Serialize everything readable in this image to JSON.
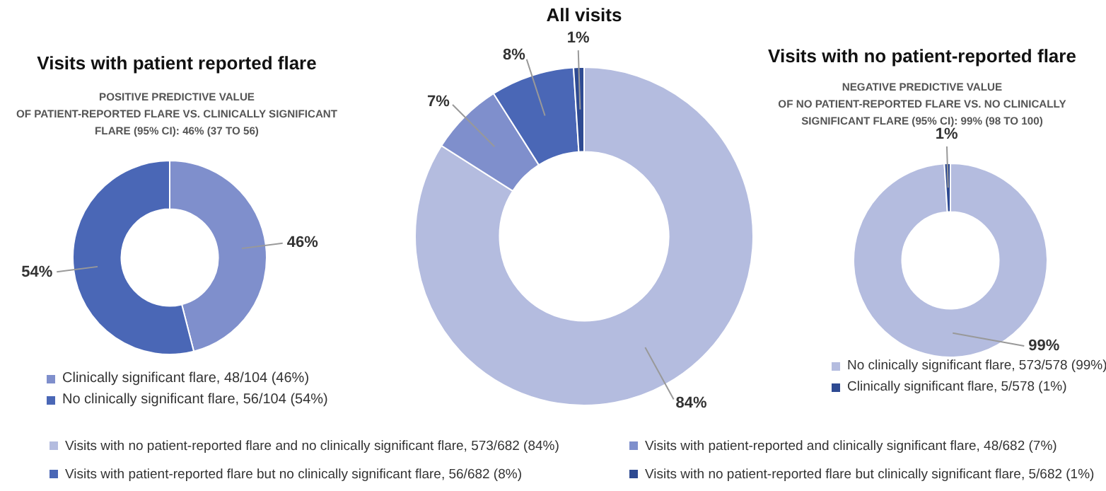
{
  "chart_data": [
    {
      "type": "donut",
      "title": "Visits with patient reported flare",
      "subtitle": "POSITIVE PREDICTIVE VALUE\nOF PATIENT-REPORTED FLARE VS. CLINICALLY SIGNIFICANT\nFLARE (95% CI): 46% (37 TO 56)",
      "categories": [
        "Clinically significant flare, 48/104 (46%)",
        "No clinically significant flare, 56/104 (54%)"
      ],
      "values": [
        46,
        54
      ],
      "colors": [
        "#7f8fcc",
        "#4a67b6"
      ],
      "value_labels": [
        "46%",
        "54%"
      ],
      "legend": "bottom"
    },
    {
      "type": "donut",
      "title": "All visits",
      "categories": [
        "Visits with no patient-reported flare and no clinically significant flare, 573/682 (84%)",
        "Visits with patient-reported and clinically significant flare, 48/682 (7%)",
        "Visits with patient-reported flare but no clinically significant flare, 56/682 (8%)",
        "Visits with no patient-reported flare but clinically significant flare, 5/682 (1%)"
      ],
      "values": [
        84,
        7,
        8,
        1
      ],
      "colors": [
        "#b4bcdf",
        "#7f8fcc",
        "#4a67b6",
        "#2e4a92"
      ],
      "value_labels": [
        "84%",
        "7%",
        "8%",
        "1%"
      ],
      "legend": "bottom"
    },
    {
      "type": "donut",
      "title": "Visits with no patient-reported flare",
      "subtitle": "NEGATIVE PREDICTIVE VALUE\nOF NO PATIENT-REPORTED FLARE VS. NO CLINICALLY\nSIGNIFICANT FLARE (95% CI): 99% (98 TO 100)",
      "categories": [
        "No clinically significant flare, 573/578 (99%)",
        "Clinically significant flare, 5/578 (1%)"
      ],
      "values": [
        99,
        1
      ],
      "colors": [
        "#b4bcdf",
        "#2e4a92"
      ],
      "value_labels": [
        "99%",
        "1%"
      ],
      "legend": "bottom"
    }
  ]
}
